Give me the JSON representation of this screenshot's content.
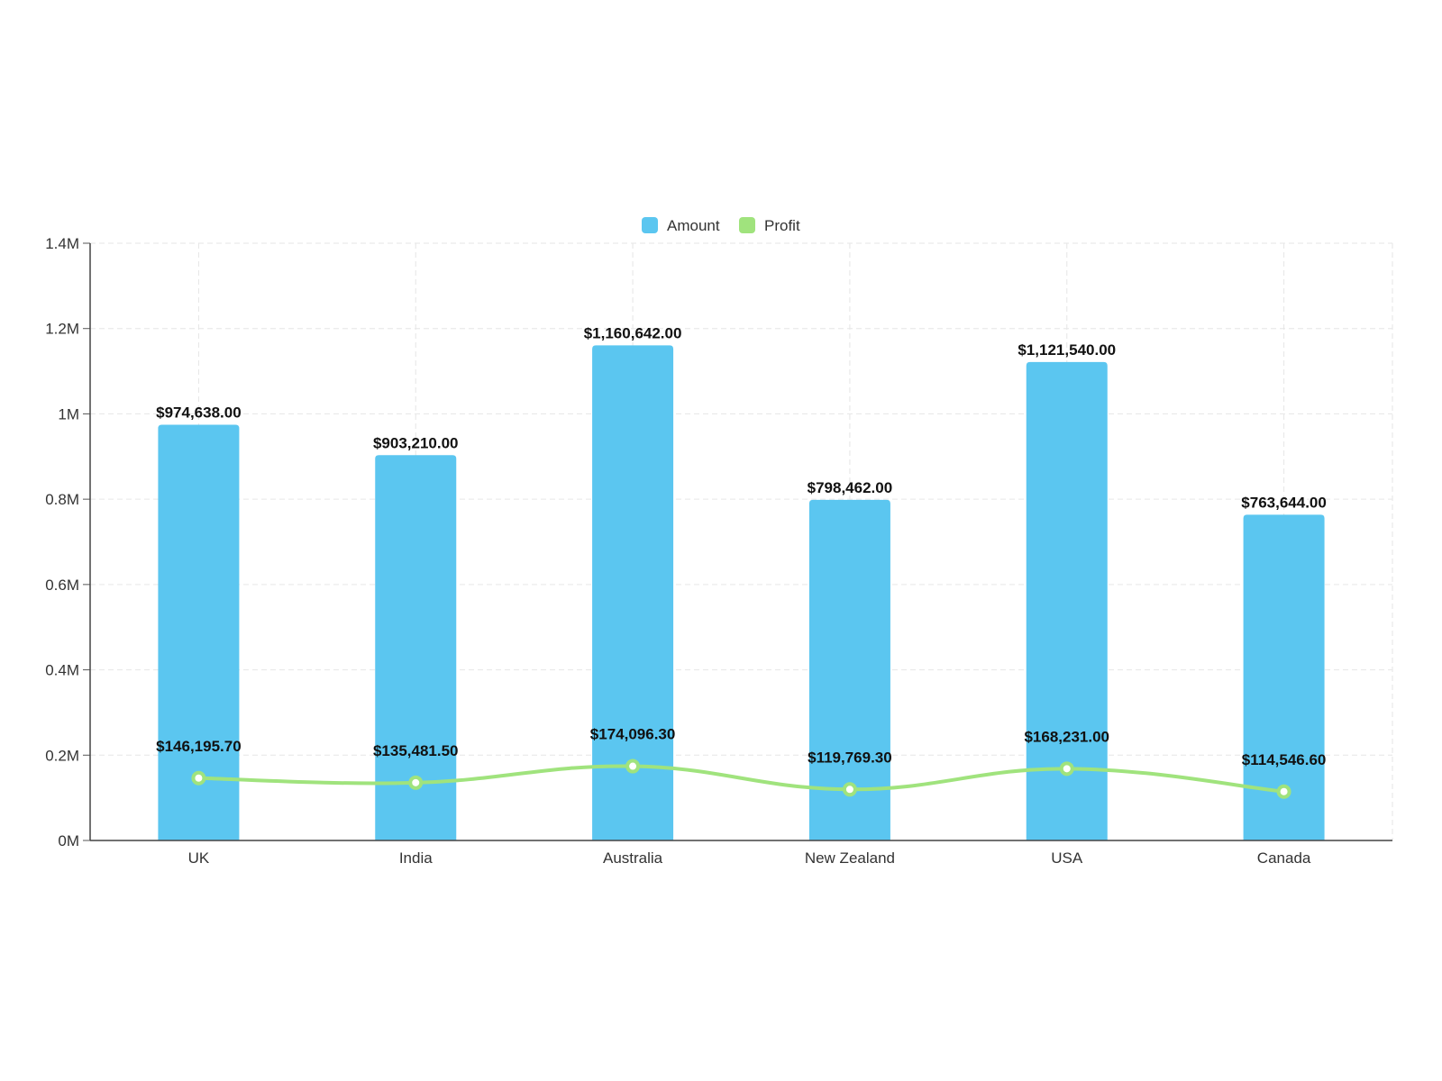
{
  "chart_data": {
    "type": "bar",
    "categories": [
      "UK",
      "India",
      "Australia",
      "New Zealand",
      "USA",
      "Canada"
    ],
    "series": [
      {
        "name": "Amount",
        "type": "bar",
        "color": "#5bc6f0",
        "values": [
          974638.0,
          903210.0,
          1160642.0,
          798462.0,
          1121540.0,
          763644.0
        ],
        "labels": [
          "$974,638.00",
          "$903,210.00",
          "$1,160,642.00",
          "$798,462.00",
          "$1,121,540.00",
          "$763,644.00"
        ]
      },
      {
        "name": "Profit",
        "type": "line",
        "color": "#a0e37d",
        "values": [
          146195.7,
          135481.5,
          174096.3,
          119769.3,
          168231.0,
          114546.6
        ],
        "labels": [
          "$146,195.70",
          "$135,481.50",
          "$174,096.30",
          "$119,769.30",
          "$168,231.00",
          "$114,546.60"
        ]
      }
    ],
    "yticks": [
      0,
      200000,
      400000,
      600000,
      800000,
      1000000,
      1200000,
      1400000
    ],
    "ytick_labels": [
      "0M",
      "0.2M",
      "0.4M",
      "0.6M",
      "0.8M",
      "1M",
      "1.2M",
      "1.4M"
    ],
    "ylim": [
      0,
      1400000
    ],
    "title": "",
    "xlabel": "",
    "ylabel": "",
    "grid": true,
    "legend_position": "top-center"
  }
}
